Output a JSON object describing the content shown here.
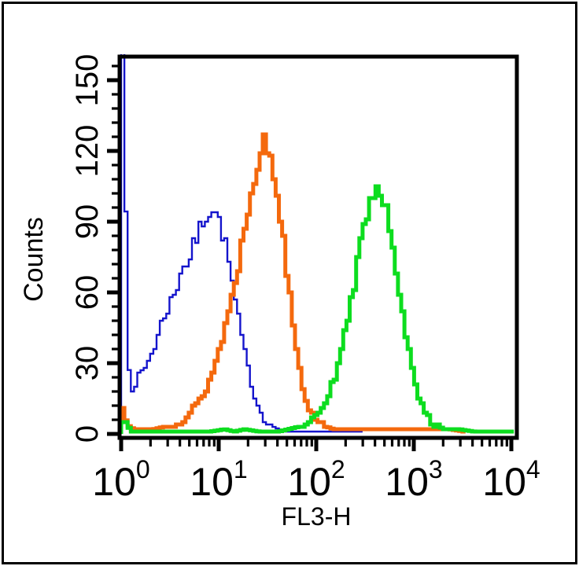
{
  "chart_data": {
    "type": "line",
    "subtype": "flow-cytometry-histogram-overlay",
    "title": "",
    "xlabel": "FL3-H",
    "ylabel": "Counts",
    "x_scale": "log10",
    "x_range_log10": [
      0,
      4
    ],
    "x_tick_base": "10",
    "x_tick_exponents": [
      0,
      1,
      2,
      3,
      4
    ],
    "ylim": [
      0,
      160
    ],
    "y_ticks": [
      0,
      30,
      60,
      90,
      120,
      150
    ],
    "y_minor_tick_step": 6,
    "grid": false,
    "legend": "none",
    "frame_color": "#000000",
    "background_color": "#ffffff",
    "series": [
      {
        "name": "blue-histogram",
        "color": "#1414cc",
        "stroke_px": 2.4,
        "clipped_at_top": true,
        "points": [
          [
            0.0,
            165
          ],
          [
            0.035,
            90
          ],
          [
            0.07,
            19
          ],
          [
            0.12,
            21
          ],
          [
            0.17,
            24
          ],
          [
            0.22,
            27
          ],
          [
            0.27,
            32
          ],
          [
            0.32,
            36
          ],
          [
            0.37,
            43
          ],
          [
            0.42,
            50
          ],
          [
            0.47,
            54
          ],
          [
            0.52,
            58
          ],
          [
            0.57,
            64
          ],
          [
            0.6,
            70
          ],
          [
            0.63,
            73
          ],
          [
            0.66,
            71
          ],
          [
            0.7,
            76
          ],
          [
            0.75,
            82
          ],
          [
            0.8,
            88
          ],
          [
            0.85,
            93
          ],
          [
            0.9,
            96
          ],
          [
            0.94,
            95
          ],
          [
            0.98,
            91
          ],
          [
            1.02,
            86
          ],
          [
            1.06,
            79
          ],
          [
            1.1,
            70
          ],
          [
            1.14,
            60
          ],
          [
            1.18,
            50
          ],
          [
            1.22,
            41
          ],
          [
            1.26,
            33
          ],
          [
            1.3,
            25
          ],
          [
            1.34,
            18
          ],
          [
            1.38,
            13
          ],
          [
            1.42,
            9
          ],
          [
            1.46,
            6
          ],
          [
            1.5,
            4
          ],
          [
            1.55,
            3
          ],
          [
            1.6,
            2
          ],
          [
            1.68,
            1
          ],
          [
            1.9,
            1
          ],
          [
            2.2,
            1
          ],
          [
            2.45,
            1
          ]
        ]
      },
      {
        "name": "orange-histogram",
        "color": "#f4690d",
        "stroke_px": 5,
        "clipped_at_top": false,
        "points": [
          [
            0.0,
            11
          ],
          [
            0.03,
            6
          ],
          [
            0.07,
            3
          ],
          [
            0.12,
            2
          ],
          [
            0.22,
            2
          ],
          [
            0.32,
            2
          ],
          [
            0.42,
            3
          ],
          [
            0.52,
            4
          ],
          [
            0.62,
            6
          ],
          [
            0.7,
            9
          ],
          [
            0.75,
            12
          ],
          [
            0.8,
            15
          ],
          [
            0.85,
            19
          ],
          [
            0.9,
            24
          ],
          [
            0.95,
            30
          ],
          [
            1.0,
            37
          ],
          [
            1.05,
            45
          ],
          [
            1.1,
            54
          ],
          [
            1.15,
            64
          ],
          [
            1.2,
            75
          ],
          [
            1.25,
            87
          ],
          [
            1.3,
            100
          ],
          [
            1.35,
            110
          ],
          [
            1.4,
            118
          ],
          [
            1.44,
            124
          ],
          [
            1.48,
            121
          ],
          [
            1.52,
            116
          ],
          [
            1.56,
            109
          ],
          [
            1.6,
            97
          ],
          [
            1.65,
            82
          ],
          [
            1.7,
            65
          ],
          [
            1.75,
            48
          ],
          [
            1.8,
            32
          ],
          [
            1.85,
            20
          ],
          [
            1.9,
            12
          ],
          [
            1.95,
            8
          ],
          [
            2.0,
            6
          ],
          [
            2.05,
            4
          ],
          [
            2.1,
            3
          ],
          [
            2.16,
            2
          ],
          [
            2.3,
            2
          ],
          [
            2.45,
            2
          ],
          [
            2.6,
            2
          ],
          [
            2.8,
            2
          ],
          [
            3.0,
            2
          ],
          [
            3.2,
            2
          ],
          [
            3.35,
            2
          ],
          [
            3.5,
            1
          ]
        ]
      },
      {
        "name": "green-histogram",
        "color": "#0ddd1f",
        "stroke_px": 5,
        "clipped_at_top": false,
        "points": [
          [
            0.0,
            5
          ],
          [
            0.045,
            5
          ],
          [
            0.08,
            1
          ],
          [
            0.3,
            1
          ],
          [
            0.6,
            1
          ],
          [
            0.9,
            1
          ],
          [
            1.05,
            2
          ],
          [
            1.15,
            1
          ],
          [
            1.25,
            2
          ],
          [
            1.4,
            1
          ],
          [
            1.6,
            1
          ],
          [
            1.7,
            2
          ],
          [
            1.8,
            3
          ],
          [
            1.85,
            4
          ],
          [
            1.9,
            5
          ],
          [
            1.95,
            7
          ],
          [
            2.0,
            9
          ],
          [
            2.05,
            12
          ],
          [
            2.1,
            16
          ],
          [
            2.15,
            22
          ],
          [
            2.2,
            28
          ],
          [
            2.25,
            36
          ],
          [
            2.3,
            46
          ],
          [
            2.35,
            58
          ],
          [
            2.4,
            70
          ],
          [
            2.45,
            82
          ],
          [
            2.5,
            92
          ],
          [
            2.55,
            101
          ],
          [
            2.6,
            107
          ],
          [
            2.65,
            104
          ],
          [
            2.7,
            97
          ],
          [
            2.75,
            86
          ],
          [
            2.8,
            72
          ],
          [
            2.85,
            57
          ],
          [
            2.9,
            43
          ],
          [
            2.95,
            31
          ],
          [
            3.0,
            21
          ],
          [
            3.05,
            14
          ],
          [
            3.1,
            9
          ],
          [
            3.15,
            6
          ],
          [
            3.2,
            4
          ],
          [
            3.3,
            2
          ],
          [
            3.45,
            2
          ],
          [
            3.6,
            1
          ],
          [
            3.8,
            1
          ],
          [
            4.0,
            1
          ]
        ]
      }
    ]
  }
}
